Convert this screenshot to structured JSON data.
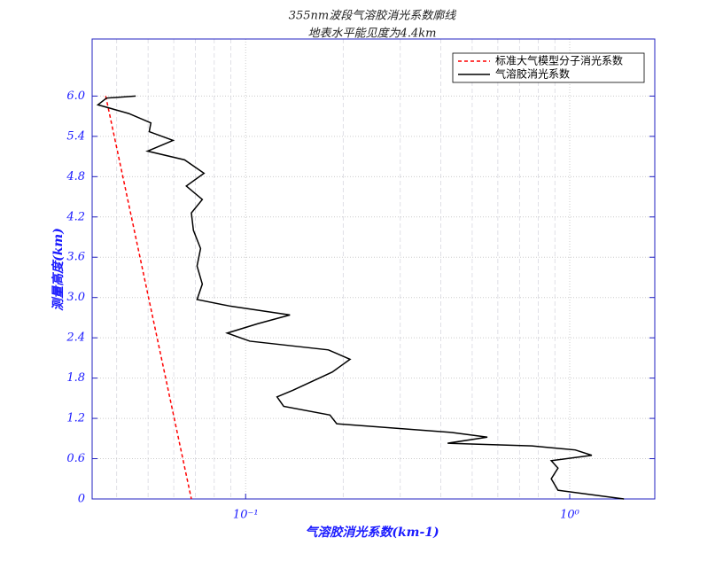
{
  "chart_data": {
    "type": "line",
    "title": "355nm波段气溶胶消光系数廓线",
    "subtitle": "地表水平能见度为4.4km",
    "x_label": "气溶胶消光系数(km-1)",
    "y_label": "测量高度(km)",
    "xscale": "log",
    "xlim": [
      0.0336,
      1.83
    ],
    "ylim": [
      0,
      6.85
    ],
    "xticks": [
      {
        "value": 0.1,
        "label": "10⁻¹"
      },
      {
        "value": 1,
        "label": "10⁰"
      }
    ],
    "xminorticks": [
      0.04,
      0.05,
      0.06,
      0.07,
      0.08,
      0.09,
      0.2,
      0.3,
      0.4,
      0.5,
      0.6,
      0.7,
      0.8,
      0.9
    ],
    "yticks": [
      0,
      0.6,
      1.2,
      1.8,
      2.4,
      {
        "value": 3,
        "label": "3.0"
      },
      3.6,
      4.2,
      4.8,
      5.4,
      {
        "value": 6,
        "label": "6.0"
      }
    ],
    "grid": true,
    "legend": "upper right",
    "series": [
      {
        "name": "标准大气模型分子消光系数",
        "color": "#ff0000",
        "dash": true,
        "x": [
          0.037,
          0.068
        ],
        "y": [
          6.0,
          0
        ]
      },
      {
        "name": "气溶胶消光系数",
        "color": "#000000",
        "dash": false,
        "x": [
          1.47,
          0.92,
          0.877,
          0.92,
          0.877,
          1.17,
          1.04,
          0.764,
          0.42,
          0.557,
          0.433,
          0.191,
          0.182,
          0.131,
          0.125,
          0.14,
          0.185,
          0.21,
          0.18,
          0.103,
          0.0877,
          0.109,
          0.137,
          0.09,
          0.0708,
          0.0735,
          0.0708,
          0.0726,
          0.069,
          0.068,
          0.0735,
          0.0656,
          0.0744,
          0.0648,
          0.0498,
          0.0597,
          0.0504,
          0.051,
          0.0436,
          0.035,
          0.0372,
          0.0458
        ],
        "y": [
          0,
          0.13,
          0.3,
          0.46,
          0.57,
          0.65,
          0.73,
          0.79,
          0.83,
          0.92,
          0.99,
          1.12,
          1.25,
          1.38,
          1.52,
          1.62,
          1.89,
          2.08,
          2.22,
          2.35,
          2.47,
          2.61,
          2.74,
          2.87,
          2.97,
          3.2,
          3.47,
          3.73,
          4.0,
          4.26,
          4.46,
          4.66,
          4.85,
          5.05,
          5.18,
          5.34,
          5.47,
          5.6,
          5.74,
          5.87,
          5.97,
          6.0
        ]
      }
    ]
  }
}
